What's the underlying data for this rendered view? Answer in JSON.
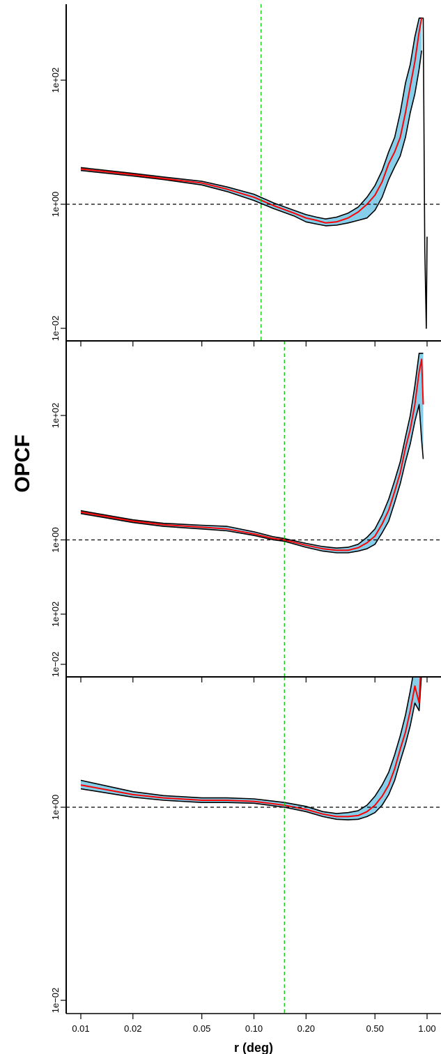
{
  "figure": {
    "ylabel": "OPCF",
    "xlabel": "r (deg)"
  },
  "colors": {
    "band_fill": "#87ceeb",
    "band_edge": "#000000",
    "median_line": "#ff0000",
    "reference_line": "#000000",
    "marker_line": "#00cc00"
  },
  "chart_data": [
    {
      "type": "line",
      "panel": "top",
      "xscale": "log",
      "yscale": "log",
      "xlim": [
        0.01,
        1.0
      ],
      "ylim": [
        0.01,
        1000
      ],
      "xlabel": "r (deg)",
      "ylabel": "OPCF",
      "yticks": [
        0.01,
        1,
        100
      ],
      "ytick_labels": [
        "1e−02",
        "1e+00",
        "1e+02"
      ],
      "reference_y": 1,
      "marker_x": 0.11,
      "series": [
        {
          "role": "median",
          "x": [
            0.01,
            0.02,
            0.03,
            0.05,
            0.07,
            0.1,
            0.13,
            0.17,
            0.2,
            0.23,
            0.26,
            0.3,
            0.35,
            0.4,
            0.45,
            0.5,
            0.55,
            0.6,
            0.65,
            0.7,
            0.75,
            0.8,
            0.85,
            0.9,
            0.93
          ],
          "y": [
            3.7,
            3.0,
            2.6,
            2.2,
            1.75,
            1.3,
            0.95,
            0.72,
            0.6,
            0.55,
            0.5,
            0.52,
            0.6,
            0.75,
            1.0,
            1.4,
            2.3,
            4.5,
            7,
            12,
            30,
            80,
            200,
            600,
            1000
          ]
        },
        {
          "role": "upper",
          "x": [
            0.01,
            0.02,
            0.03,
            0.05,
            0.07,
            0.1,
            0.13,
            0.17,
            0.2,
            0.23,
            0.26,
            0.3,
            0.35,
            0.4,
            0.45,
            0.5,
            0.55,
            0.6,
            0.65,
            0.7,
            0.75,
            0.8,
            0.85,
            0.9,
            0.93
          ],
          "y": [
            3.9,
            3.15,
            2.75,
            2.35,
            1.9,
            1.45,
            1.05,
            0.8,
            0.68,
            0.62,
            0.58,
            0.62,
            0.72,
            0.9,
            1.3,
            2.0,
            3.5,
            7,
            12,
            30,
            90,
            180,
            500,
            1000,
            1000
          ]
        },
        {
          "role": "lower",
          "x": [
            0.01,
            0.02,
            0.03,
            0.05,
            0.07,
            0.1,
            0.13,
            0.17,
            0.2,
            0.23,
            0.26,
            0.3,
            0.35,
            0.4,
            0.45,
            0.5,
            0.55,
            0.6,
            0.65,
            0.7,
            0.75,
            0.8,
            0.85,
            0.9,
            0.93
          ],
          "y": [
            3.5,
            2.85,
            2.5,
            2.05,
            1.6,
            1.15,
            0.85,
            0.65,
            0.52,
            0.48,
            0.45,
            0.46,
            0.5,
            0.55,
            0.6,
            0.8,
            1.3,
            2.5,
            4,
            6,
            12,
            30,
            60,
            150,
            300
          ]
        },
        {
          "role": "spike",
          "x": [
            0.9,
            0.93,
            0.95,
            0.97,
            0.99,
            1.0
          ],
          "y": [
            1000,
            1000,
            1000,
            0.2,
            0.01,
            0.3
          ]
        }
      ]
    },
    {
      "type": "line",
      "panel": "middle",
      "xscale": "log",
      "yscale": "log",
      "xlim": [
        0.01,
        1.0
      ],
      "ylim": [
        0.01,
        1000
      ],
      "xlabel": "r (deg)",
      "ylabel": "OPCF",
      "yticks": [
        0.01,
        1,
        100
      ],
      "ytick_labels": [
        "1e−02",
        "1e+00",
        "1e+02"
      ],
      "reference_y": 1,
      "marker_x": 0.15,
      "series": [
        {
          "role": "median",
          "x": [
            0.01,
            0.02,
            0.03,
            0.05,
            0.07,
            0.1,
            0.13,
            0.15,
            0.2,
            0.25,
            0.3,
            0.35,
            0.4,
            0.45,
            0.5,
            0.55,
            0.6,
            0.65,
            0.7,
            0.75,
            0.8,
            0.85,
            0.9,
            0.93,
            0.95
          ],
          "y": [
            2.8,
            2.0,
            1.75,
            1.6,
            1.5,
            1.25,
            1.05,
            1.0,
            0.82,
            0.72,
            0.68,
            0.68,
            0.75,
            0.9,
            1.15,
            1.8,
            3,
            6,
            12,
            30,
            60,
            150,
            500,
            800,
            150
          ]
        },
        {
          "role": "upper",
          "x": [
            0.01,
            0.02,
            0.03,
            0.05,
            0.07,
            0.1,
            0.13,
            0.15,
            0.2,
            0.25,
            0.3,
            0.35,
            0.4,
            0.45,
            0.5,
            0.55,
            0.6,
            0.65,
            0.7,
            0.75,
            0.8,
            0.85,
            0.9,
            0.93,
            0.95
          ],
          "y": [
            2.95,
            2.1,
            1.85,
            1.72,
            1.65,
            1.35,
            1.12,
            1.05,
            0.88,
            0.78,
            0.74,
            0.76,
            0.85,
            1.1,
            1.5,
            2.5,
            4.5,
            9,
            18,
            45,
            100,
            300,
            1000,
            1000,
            1000
          ]
        },
        {
          "role": "lower",
          "x": [
            0.01,
            0.02,
            0.03,
            0.05,
            0.07,
            0.1,
            0.13,
            0.15,
            0.2,
            0.25,
            0.3,
            0.35,
            0.4,
            0.45,
            0.5,
            0.55,
            0.6,
            0.65,
            0.7,
            0.75,
            0.8,
            0.85,
            0.9,
            0.93,
            0.95
          ],
          "y": [
            2.65,
            1.9,
            1.65,
            1.5,
            1.4,
            1.18,
            1.0,
            0.95,
            0.76,
            0.66,
            0.62,
            0.62,
            0.66,
            0.72,
            0.85,
            1.3,
            2,
            4,
            8,
            18,
            35,
            80,
            150,
            40,
            20
          ]
        }
      ]
    },
    {
      "type": "line",
      "panel": "bottom",
      "xscale": "log",
      "yscale": "log",
      "xlim": [
        0.01,
        1.0
      ],
      "ylim": [
        0.01,
        1000
      ],
      "xlabel": "r (deg)",
      "ylabel": "OPCF",
      "xticks": [
        0.01,
        0.02,
        0.05,
        0.1,
        0.2,
        0.5,
        1.0
      ],
      "xtick_labels": [
        "0.01",
        "0.02",
        "0.05",
        "0.10",
        "0.20",
        "0.50",
        "1.00"
      ],
      "yticks": [
        0.01,
        1,
        100
      ],
      "ytick_labels": [
        "1e−02",
        "1e+00",
        "1e+02"
      ],
      "reference_y": 1,
      "marker_x": 0.15,
      "series": [
        {
          "role": "median",
          "x": [
            0.01,
            0.02,
            0.03,
            0.05,
            0.07,
            0.1,
            0.15,
            0.2,
            0.25,
            0.3,
            0.35,
            0.4,
            0.45,
            0.5,
            0.55,
            0.6,
            0.65,
            0.7,
            0.75,
            0.8,
            0.85,
            0.9,
            0.93,
            0.95,
            0.97
          ],
          "y": [
            1.7,
            1.35,
            1.25,
            1.18,
            1.18,
            1.15,
            1.05,
            0.95,
            0.85,
            0.8,
            0.8,
            0.82,
            0.9,
            1.05,
            1.3,
            1.7,
            2.5,
            4,
            6,
            10,
            18,
            12,
            40,
            120,
            140
          ]
        },
        {
          "role": "upper",
          "x": [
            0.01,
            0.02,
            0.03,
            0.05,
            0.07,
            0.1,
            0.15,
            0.2,
            0.25,
            0.3,
            0.35,
            0.4,
            0.45,
            0.5,
            0.55,
            0.6,
            0.65,
            0.7,
            0.75,
            0.8,
            0.85,
            0.9,
            0.93,
            0.95,
            0.97
          ],
          "y": [
            1.9,
            1.45,
            1.32,
            1.25,
            1.25,
            1.22,
            1.12,
            1.02,
            0.9,
            0.86,
            0.88,
            0.92,
            1.05,
            1.3,
            1.7,
            2.3,
            3.5,
            5.5,
            9,
            16,
            30,
            40,
            120,
            400,
            600
          ]
        },
        {
          "role": "lower",
          "x": [
            0.01,
            0.02,
            0.03,
            0.05,
            0.07,
            0.1,
            0.15,
            0.2,
            0.25,
            0.3,
            0.35,
            0.4,
            0.45,
            0.5,
            0.55,
            0.6,
            0.65,
            0.7,
            0.75,
            0.8,
            0.85,
            0.9,
            0.93,
            0.95,
            0.97
          ],
          "y": [
            1.55,
            1.27,
            1.18,
            1.12,
            1.12,
            1.1,
            1.0,
            0.9,
            0.8,
            0.75,
            0.74,
            0.75,
            0.8,
            0.88,
            1.05,
            1.35,
            1.9,
            3,
            4.5,
            7,
            12,
            10,
            25,
            60,
            30
          ]
        }
      ]
    }
  ]
}
